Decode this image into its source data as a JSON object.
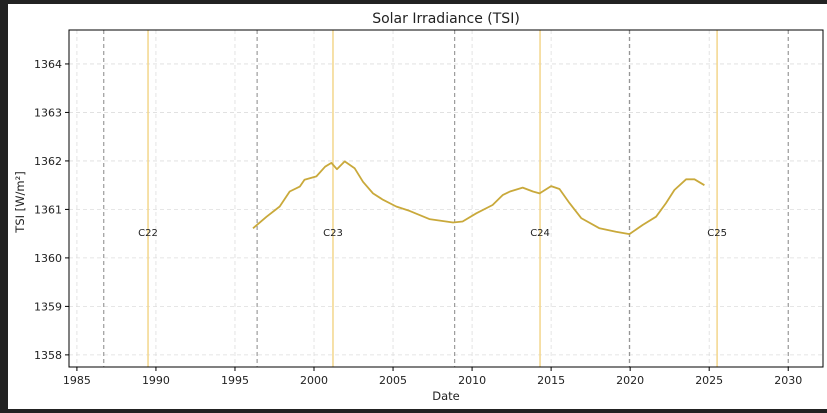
{
  "chart_data": {
    "type": "line",
    "title": "Solar Irradiance (TSI)",
    "xlabel": "Date",
    "ylabel": "TSI [W/m²]",
    "xlim": [
      1984.5,
      2032.2
    ],
    "ylim": [
      1357.75,
      1364.7
    ],
    "xticks": [
      1985,
      1990,
      1995,
      2000,
      2005,
      2010,
      2015,
      2020,
      2025,
      2030
    ],
    "yticks": [
      1358,
      1359,
      1360,
      1361,
      1362,
      1363,
      1364
    ],
    "grid": true,
    "line_color": "#c9a93b",
    "max_line_color": "#f3d68c",
    "min_line_color": "#888888",
    "series": [
      {
        "x": [
          1996.14,
          1997.0,
          1997.83,
          1998.46,
          1999.1,
          1999.4,
          2000.15,
          2000.7,
          2001.1,
          2001.45,
          2001.94,
          2002.57,
          2003.1,
          2003.73,
          2004.36,
          2005.2,
          2006.05,
          2007.3,
          2008.8,
          2009.4,
          2010.27,
          2011.3,
          2011.95,
          2012.4,
          2013.2,
          2013.85,
          2014.27,
          2015.0,
          2015.53,
          2016.16,
          2016.9,
          2018.06,
          2019.1,
          2019.95,
          2020.8,
          2021.64,
          2022.27,
          2022.8,
          2023.54,
          2024.07,
          2024.7
        ],
        "y": [
          1360.61,
          1360.85,
          1361.06,
          1361.37,
          1361.47,
          1361.61,
          1361.68,
          1361.88,
          1361.96,
          1361.83,
          1361.99,
          1361.85,
          1361.57,
          1361.33,
          1361.2,
          1361.06,
          1360.97,
          1360.8,
          1360.73,
          1360.75,
          1360.92,
          1361.09,
          1361.3,
          1361.37,
          1361.45,
          1361.37,
          1361.33,
          1361.48,
          1361.42,
          1361.13,
          1360.82,
          1360.61,
          1360.54,
          1360.49,
          1360.68,
          1360.85,
          1361.13,
          1361.4,
          1361.62,
          1361.62,
          1361.5
        ]
      }
    ],
    "cycle_minima": [
      1986.7,
      1996.4,
      2008.9,
      2019.95,
      2030.0
    ],
    "cycle_maxima": [
      {
        "label": "C22",
        "x": 1989.5
      },
      {
        "label": "C23",
        "x": 2001.2
      },
      {
        "label": "C24",
        "x": 2014.3
      },
      {
        "label": "C25",
        "x": 2025.5
      }
    ],
    "cycle_label_y": 1360.53
  }
}
